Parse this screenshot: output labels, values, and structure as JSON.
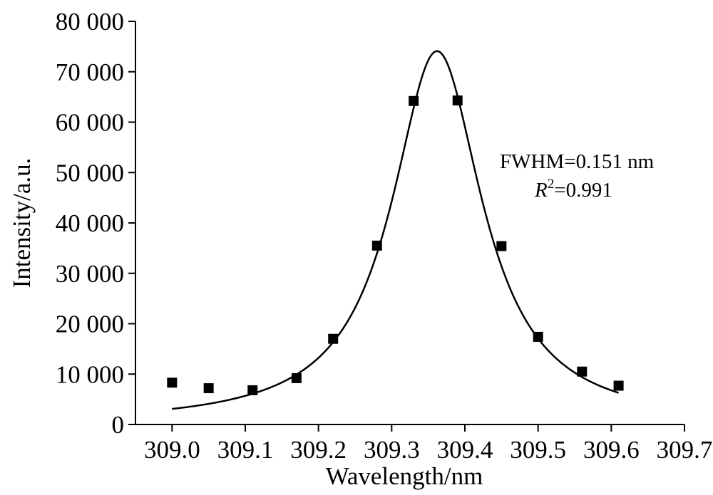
{
  "chart_data": {
    "type": "scatter",
    "xlabel": "Wavelength/nm",
    "ylabel": "Intensity/a.u.",
    "xlim": [
      308.95,
      309.7
    ],
    "ylim": [
      0,
      80000
    ],
    "x_ticks": [
      {
        "value": 309.0,
        "label": "309.0"
      },
      {
        "value": 309.1,
        "label": "309.1"
      },
      {
        "value": 309.2,
        "label": "309.2"
      },
      {
        "value": 309.3,
        "label": "309.3"
      },
      {
        "value": 309.4,
        "label": "309.4"
      },
      {
        "value": 309.5,
        "label": "309.5"
      },
      {
        "value": 309.6,
        "label": "309.6"
      },
      {
        "value": 309.7,
        "label": "309.7"
      }
    ],
    "y_ticks": [
      {
        "value": 0,
        "label": "0"
      },
      {
        "value": 10000,
        "label": "10 000"
      },
      {
        "value": 20000,
        "label": "20 000"
      },
      {
        "value": 30000,
        "label": "30 000"
      },
      {
        "value": 40000,
        "label": "40 000"
      },
      {
        "value": 50000,
        "label": "50 000"
      },
      {
        "value": 60000,
        "label": "60 000"
      },
      {
        "value": 70000,
        "label": "70 000"
      },
      {
        "value": 80000,
        "label": "80 000"
      }
    ],
    "grid": false,
    "series": [
      {
        "marker": "square",
        "color": "#000000",
        "x": [
          309.0,
          309.05,
          309.11,
          309.17,
          309.22,
          309.28,
          309.33,
          309.39,
          309.45,
          309.5,
          309.56,
          309.61
        ],
        "y": [
          8300,
          7200,
          6800,
          9200,
          17000,
          35500,
          64200,
          64300,
          35400,
          17400,
          10500,
          7700
        ]
      }
    ],
    "fit": {
      "type": "lorentzian",
      "color": "#000000",
      "center": 309.362,
      "fwhm": 0.151,
      "amplitude": 74100,
      "x_range": [
        309.0,
        309.61
      ]
    },
    "annotations": {
      "fwhm_text": "FWHM=0.151 nm",
      "r2_symbol": "R",
      "r2_sup": "2",
      "r2_value": "=0.991"
    }
  }
}
